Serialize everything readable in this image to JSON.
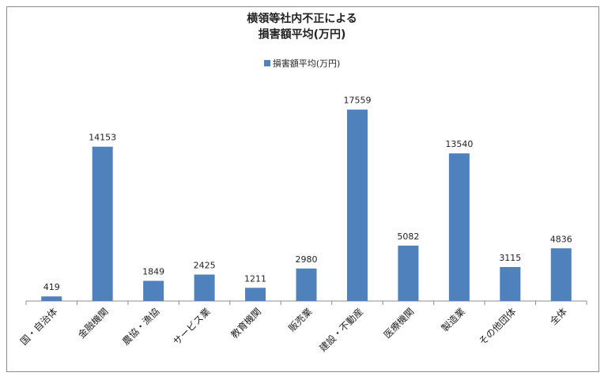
{
  "chart_data": {
    "type": "bar",
    "title_line1": "横領等社内不正による",
    "title_line2": "損害額平均(万円)",
    "legend": "損害額平均(万円)",
    "categories": [
      "国・自治体",
      "金融機関",
      "農協・漁協",
      "サービス業",
      "教育機関",
      "販売業",
      "建設・不動産",
      "医療機関",
      "製造業",
      "その他団体",
      "全体"
    ],
    "series": [
      {
        "name": "損害額平均(万円)",
        "values": [
          419,
          14153,
          1849,
          2425,
          1211,
          2980,
          17559,
          5082,
          13540,
          3115,
          4836
        ]
      }
    ],
    "ylim": [
      0,
      20000
    ],
    "grid": false,
    "legend_position": "top",
    "color": "#4f81bd"
  }
}
